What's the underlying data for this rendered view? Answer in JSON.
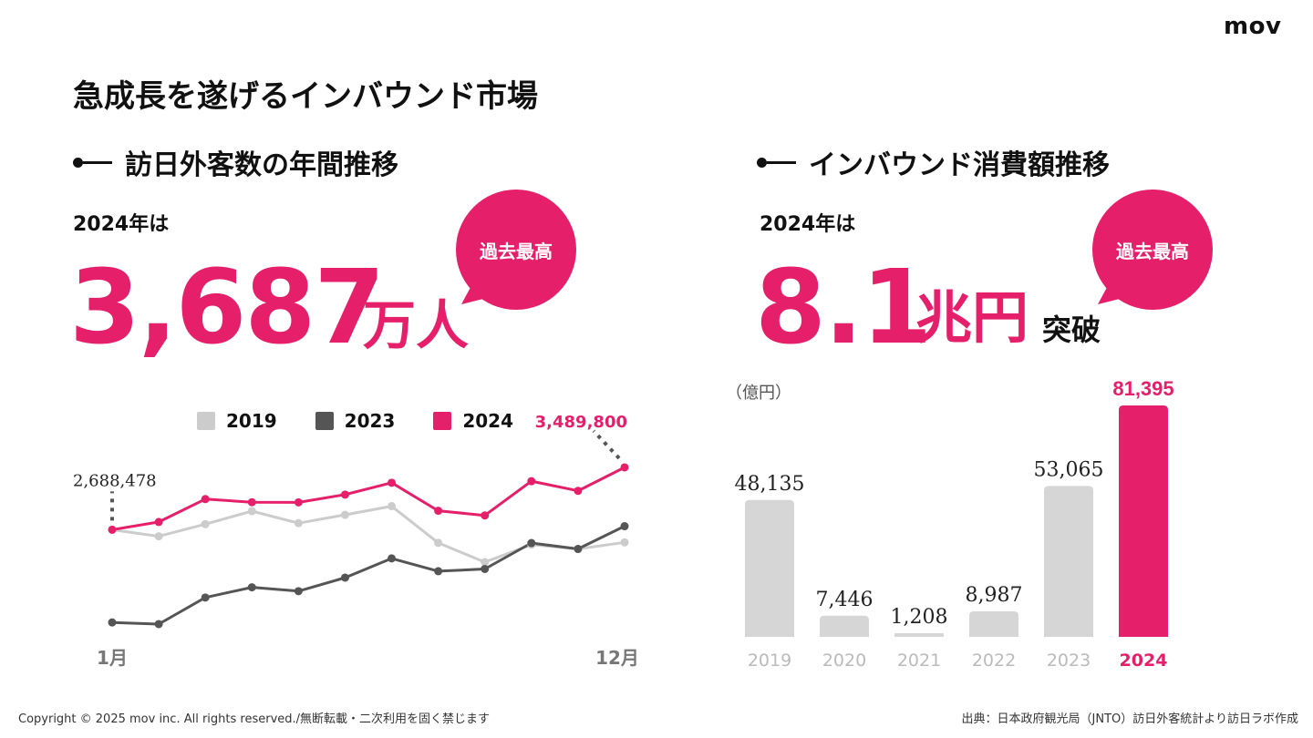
{
  "logo": "mov",
  "title": "急成長を遂げるインバウンド市場",
  "left": {
    "heading": "訪日外客数の年間推移",
    "prefix": "2024年は",
    "value": "3,687",
    "unit": "万人",
    "badge": "過去最高"
  },
  "right": {
    "heading": "インバウンド消費額推移",
    "prefix": "2024年は",
    "value": "8.1",
    "unit": "兆円",
    "suffix": "突破",
    "badge": "過去最高"
  },
  "colors": {
    "accent": "#e61f6a",
    "gray_light": "#cccccc",
    "gray_dark": "#555555",
    "text": "#111111"
  },
  "chart_data": [
    {
      "type": "line",
      "x_start_label": "1月",
      "x_end_label": "12月",
      "x": [
        1,
        2,
        3,
        4,
        5,
        6,
        7,
        8,
        9,
        10,
        11,
        12
      ],
      "series": [
        {
          "name": "2019",
          "color": "#cccccc",
          "values": [
            2689000,
            2604000,
            2760000,
            2927000,
            2773000,
            2880000,
            2991000,
            2520000,
            2272000,
            2496000,
            2441000,
            2526000
          ]
        },
        {
          "name": "2023",
          "color": "#555555",
          "values": [
            1497000,
            1476000,
            1817000,
            1949000,
            1899000,
            2073000,
            2320000,
            2156000,
            2184000,
            2517000,
            2441000,
            2734000
          ]
        },
        {
          "name": "2024",
          "color": "#e61f6a",
          "values": [
            2688478,
            2788000,
            3082000,
            3042000,
            3040000,
            3140000,
            3292000,
            2932000,
            2872000,
            3312000,
            3188000,
            3489800
          ]
        }
      ],
      "annotations": [
        {
          "series": "2024",
          "index": 0,
          "label": "2,688,478"
        },
        {
          "series": "2024",
          "index": 11,
          "label": "3,489,800"
        }
      ],
      "ylim": [
        1300000,
        3700000
      ]
    },
    {
      "type": "bar",
      "unit_label": "（億円）",
      "categories": [
        "2019",
        "2020",
        "2021",
        "2022",
        "2023",
        "2024"
      ],
      "values": [
        48135,
        7446,
        1208,
        8987,
        53065,
        81395
      ],
      "value_labels": [
        "48,135",
        "7,446",
        "1,208",
        "8,987",
        "53,065",
        "81,395"
      ],
      "highlight_index": 5,
      "ylim": [
        0,
        81395
      ]
    }
  ],
  "footer": {
    "copyright": "Copyright © 2025 mov inc. All rights reserved./無断転載・二次利用を固く禁じます",
    "source": "出典：日本政府観光局（JNTO）訪日外客統計より訪日ラボ作成"
  }
}
